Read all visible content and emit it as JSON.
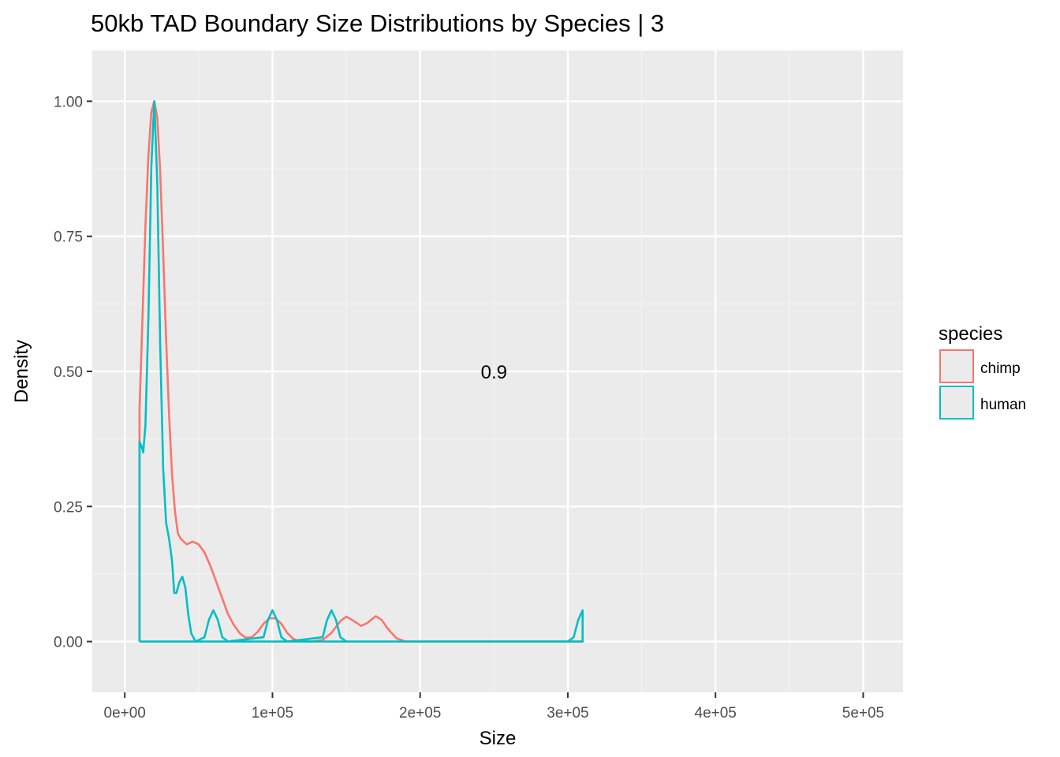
{
  "chart_data": {
    "type": "line",
    "title": "50kb TAD Boundary Size Distributions by Species | 3",
    "xlabel": "Size",
    "ylabel": "Density",
    "xlim": [
      -22000,
      527000
    ],
    "ylim": [
      -0.094,
      1.094
    ],
    "x_ticks": [
      0,
      100000,
      200000,
      300000,
      400000,
      500000
    ],
    "x_tick_labels": [
      "0e+00",
      "1e+05",
      "2e+05",
      "3e+05",
      "4e+05",
      "5e+05"
    ],
    "y_ticks": [
      0,
      0.25,
      0.5,
      0.75,
      1.0
    ],
    "y_tick_labels": [
      "0.00",
      "0.25",
      "0.50",
      "0.75",
      "1.00"
    ],
    "grid": true,
    "legend": {
      "title": "species",
      "position": "right"
    },
    "annotation": {
      "text": "0.9",
      "x": 250000,
      "y": 0.5
    },
    "series": [
      {
        "name": "chimp",
        "color": "#F8766D",
        "points": [
          [
            10000,
            0
          ],
          [
            10000,
            0.43
          ],
          [
            12000,
            0.6
          ],
          [
            14000,
            0.77
          ],
          [
            16000,
            0.9
          ],
          [
            18000,
            0.98
          ],
          [
            20000,
            1.0
          ],
          [
            22000,
            0.97
          ],
          [
            24000,
            0.87
          ],
          [
            26000,
            0.72
          ],
          [
            28000,
            0.56
          ],
          [
            30000,
            0.42
          ],
          [
            32000,
            0.31
          ],
          [
            34000,
            0.24
          ],
          [
            36000,
            0.2
          ],
          [
            38000,
            0.19
          ],
          [
            42000,
            0.18
          ],
          [
            46000,
            0.185
          ],
          [
            50000,
            0.18
          ],
          [
            54000,
            0.165
          ],
          [
            58000,
            0.14
          ],
          [
            62000,
            0.11
          ],
          [
            66000,
            0.08
          ],
          [
            70000,
            0.05
          ],
          [
            74000,
            0.03
          ],
          [
            78000,
            0.015
          ],
          [
            82000,
            0.007
          ],
          [
            86000,
            0.008
          ],
          [
            90000,
            0.018
          ],
          [
            94000,
            0.033
          ],
          [
            98000,
            0.043
          ],
          [
            102000,
            0.043
          ],
          [
            106000,
            0.033
          ],
          [
            110000,
            0.016
          ],
          [
            114000,
            0.005
          ],
          [
            118000,
            0.001
          ],
          [
            126000,
            0.0
          ],
          [
            134000,
            0.003
          ],
          [
            140000,
            0.016
          ],
          [
            146000,
            0.038
          ],
          [
            150000,
            0.046
          ],
          [
            154000,
            0.04
          ],
          [
            160000,
            0.029
          ],
          [
            164000,
            0.034
          ],
          [
            170000,
            0.047
          ],
          [
            174000,
            0.04
          ],
          [
            178000,
            0.024
          ],
          [
            184000,
            0.006
          ],
          [
            190000,
            0.0
          ],
          [
            310000,
            0.0
          ]
        ]
      },
      {
        "name": "human",
        "color": "#00BFC4",
        "points": [
          [
            10000,
            0
          ],
          [
            10000,
            0.37
          ],
          [
            11500,
            0.36
          ],
          [
            12500,
            0.35
          ],
          [
            14000,
            0.4
          ],
          [
            16000,
            0.6
          ],
          [
            18000,
            0.88
          ],
          [
            20000,
            1.0
          ],
          [
            22000,
            0.85
          ],
          [
            24000,
            0.55
          ],
          [
            26000,
            0.32
          ],
          [
            28000,
            0.22
          ],
          [
            30000,
            0.19
          ],
          [
            32000,
            0.15
          ],
          [
            33500,
            0.09
          ],
          [
            35000,
            0.09
          ],
          [
            37000,
            0.11
          ],
          [
            39000,
            0.12
          ],
          [
            41000,
            0.1
          ],
          [
            43000,
            0.05
          ],
          [
            45000,
            0.015
          ],
          [
            48000,
            0.0
          ],
          [
            54000,
            0.008
          ],
          [
            57000,
            0.04
          ],
          [
            60000,
            0.058
          ],
          [
            63000,
            0.04
          ],
          [
            66000,
            0.008
          ],
          [
            70000,
            0.0
          ],
          [
            94000,
            0.008
          ],
          [
            97000,
            0.04
          ],
          [
            100000,
            0.058
          ],
          [
            103000,
            0.04
          ],
          [
            106000,
            0.008
          ],
          [
            110000,
            0.0
          ],
          [
            134000,
            0.008
          ],
          [
            137000,
            0.04
          ],
          [
            140000,
            0.058
          ],
          [
            143000,
            0.04
          ],
          [
            146000,
            0.008
          ],
          [
            150000,
            0.0
          ],
          [
            300000,
            0.0
          ],
          [
            304000,
            0.008
          ],
          [
            307000,
            0.04
          ],
          [
            310000,
            0.058
          ],
          [
            310000,
            0.0
          ],
          [
            10000,
            0.0
          ]
        ]
      }
    ]
  }
}
